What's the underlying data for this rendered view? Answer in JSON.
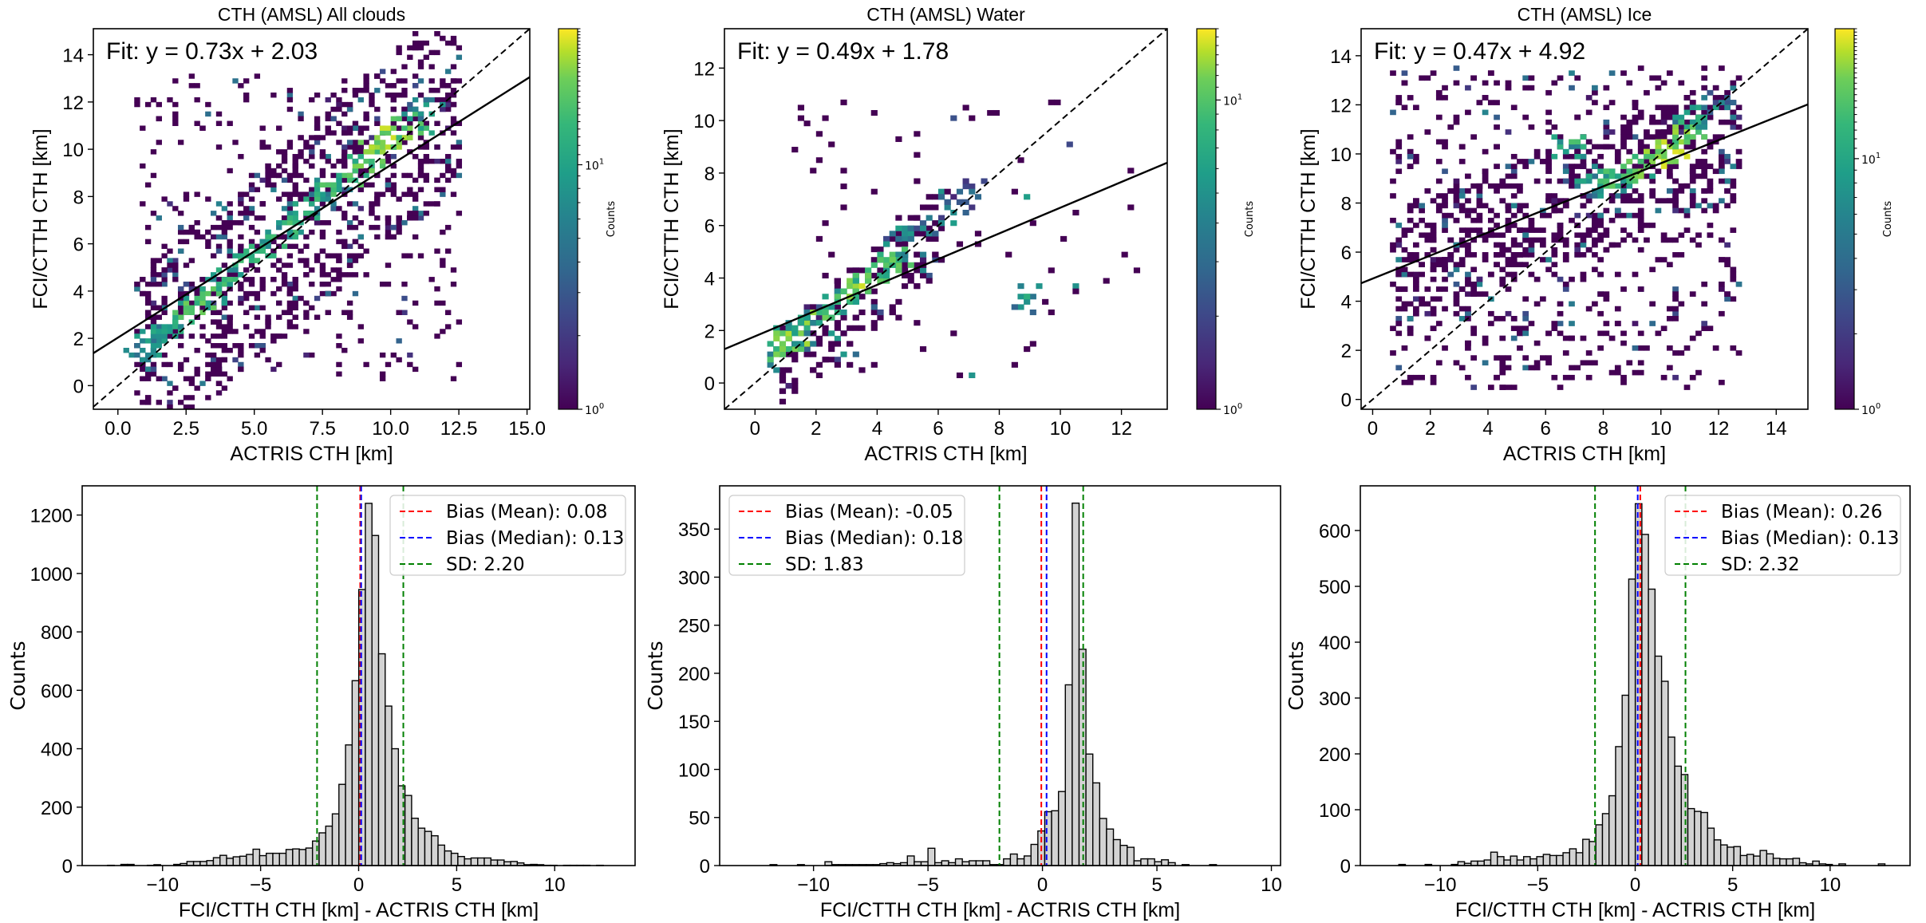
{
  "figure": {
    "description": "CTH comparison: FCI/CTTH vs ACTRIS — 2D histograms (top) and difference histograms (bottom)"
  },
  "chart_data": [
    {
      "id": "scatter-all",
      "type": "heatmap",
      "title": "CTH (AMSL) All clouds",
      "xlabel": "ACTRIS CTH [km]",
      "ylabel": "FCI/CTTH CTH [km]",
      "xlim": [
        -0.9,
        15.1
      ],
      "ylim": [
        -1.0,
        15.1
      ],
      "xticks": [
        0.0,
        2.5,
        5.0,
        7.5,
        10.0,
        12.5,
        15.0
      ],
      "xtick_labels": [
        "0.0",
        "2.5",
        "5.0",
        "7.5",
        "10.0",
        "12.5",
        "15.0"
      ],
      "yticks": [
        0,
        2,
        4,
        6,
        8,
        10,
        12,
        14
      ],
      "ytick_labels": [
        "0",
        "2",
        "4",
        "6",
        "8",
        "10",
        "12",
        "14"
      ],
      "fit": {
        "slope": 0.73,
        "intercept": 2.03,
        "label": "Fit: y = 0.73x + 2.03"
      },
      "one_to_one_line": true,
      "density_ridge": [
        [
          0.8,
          1.2,
          6
        ],
        [
          1.2,
          1.8,
          8
        ],
        [
          1.6,
          2.2,
          9
        ],
        [
          2.0,
          2.6,
          10
        ],
        [
          2.5,
          3.0,
          14
        ],
        [
          3.0,
          3.5,
          16
        ],
        [
          3.5,
          4.0,
          15
        ],
        [
          4.0,
          4.6,
          12
        ],
        [
          4.6,
          5.2,
          12
        ],
        [
          5.2,
          5.7,
          11
        ],
        [
          5.8,
          6.3,
          12
        ],
        [
          6.3,
          6.8,
          13
        ],
        [
          6.8,
          7.2,
          11
        ],
        [
          7.2,
          7.8,
          10
        ],
        [
          7.8,
          8.4,
          14
        ],
        [
          8.4,
          8.8,
          15
        ],
        [
          8.8,
          9.3,
          18
        ],
        [
          9.3,
          9.8,
          20
        ],
        [
          9.8,
          10.2,
          25
        ],
        [
          10.2,
          10.5,
          28
        ],
        [
          10.6,
          10.9,
          22
        ],
        [
          11.0,
          11.2,
          14
        ],
        [
          11.4,
          11.6,
          8
        ]
      ],
      "colorbar": {
        "label": "Counts",
        "scale": "log",
        "ticks": [
          "10^0",
          "10^1"
        ],
        "min": 1,
        "max": 36
      }
    },
    {
      "id": "scatter-water",
      "type": "heatmap",
      "title": "CTH (AMSL) Water",
      "xlabel": "ACTRIS CTH [km]",
      "ylabel": "FCI/CTTH CTH [km]",
      "xlim": [
        -1.0,
        13.5
      ],
      "ylim": [
        -1.0,
        13.5
      ],
      "xticks": [
        0,
        2,
        4,
        6,
        8,
        10,
        12
      ],
      "xtick_labels": [
        "0",
        "2",
        "4",
        "6",
        "8",
        "10",
        "12"
      ],
      "yticks": [
        0,
        2,
        4,
        6,
        8,
        10,
        12
      ],
      "ytick_labels": [
        "0",
        "2",
        "4",
        "6",
        "8",
        "10",
        "12"
      ],
      "fit": {
        "slope": 0.49,
        "intercept": 1.78,
        "label": "Fit: y = 0.49x + 1.78"
      },
      "one_to_one_line": true,
      "density_ridge": [
        [
          0.8,
          1.0,
          8
        ],
        [
          1.0,
          1.6,
          10
        ],
        [
          1.2,
          1.8,
          12
        ],
        [
          1.6,
          2.0,
          6
        ],
        [
          2.0,
          2.4,
          5
        ],
        [
          2.4,
          2.8,
          12
        ],
        [
          2.8,
          3.2,
          8
        ],
        [
          3.2,
          3.5,
          10
        ],
        [
          3.5,
          3.7,
          14
        ],
        [
          3.8,
          4.0,
          9
        ],
        [
          4.2,
          4.4,
          8
        ],
        [
          4.6,
          4.8,
          9
        ],
        [
          5.0,
          5.4,
          5
        ],
        [
          5.6,
          5.9,
          4
        ],
        [
          6.4,
          6.6,
          4
        ],
        [
          7.0,
          7.2,
          3
        ],
        [
          8.9,
          3.2,
          6
        ]
      ],
      "colorbar": {
        "label": "Counts",
        "scale": "log",
        "ticks": [
          "10^0",
          "10^1"
        ],
        "min": 1,
        "max": 17
      }
    },
    {
      "id": "scatter-ice",
      "type": "heatmap",
      "title": "CTH (AMSL) Ice",
      "xlabel": "ACTRIS CTH [km]",
      "ylabel": "FCI/CTTH CTH [km]",
      "xlim": [
        -0.4,
        15.1
      ],
      "ylim": [
        -0.4,
        15.1
      ],
      "xticks": [
        0,
        2,
        4,
        6,
        8,
        10,
        12,
        14
      ],
      "xtick_labels": [
        "0",
        "2",
        "4",
        "6",
        "8",
        "10",
        "12",
        "14"
      ],
      "yticks": [
        0,
        2,
        4,
        6,
        8,
        10,
        12,
        14
      ],
      "ytick_labels": [
        "0",
        "2",
        "4",
        "6",
        "8",
        "10",
        "12",
        "14"
      ],
      "fit": {
        "slope": 0.47,
        "intercept": 4.92,
        "label": "Fit: y = 0.47x + 4.92"
      },
      "one_to_one_line": true,
      "density_ridge": [
        [
          6.8,
          10.4,
          12
        ],
        [
          7.6,
          9.0,
          8
        ],
        [
          8.2,
          8.8,
          12
        ],
        [
          8.6,
          9.0,
          14
        ],
        [
          9.0,
          9.2,
          16
        ],
        [
          9.4,
          9.6,
          18
        ],
        [
          9.8,
          10.0,
          22
        ],
        [
          10.2,
          10.4,
          26
        ],
        [
          10.4,
          10.0,
          28
        ],
        [
          10.6,
          10.8,
          20
        ],
        [
          11.0,
          11.0,
          14
        ],
        [
          11.4,
          11.6,
          8
        ],
        [
          12.0,
          12.0,
          5
        ]
      ],
      "colorbar": {
        "label": "Counts",
        "scale": "log",
        "ticks": [
          "10^0",
          "10^1"
        ],
        "min": 1,
        "max": 33
      }
    },
    {
      "id": "hist-all",
      "type": "bar",
      "subtype": "histogram",
      "xlabel": "FCI/CTTH CTH [km] - ACTRIS CTH [km]",
      "ylabel": "Counts",
      "xlim": [
        -14.1,
        14.1
      ],
      "ylim": [
        0,
        1300
      ],
      "xticks": [
        -10,
        -5,
        0,
        5,
        10
      ],
      "xtick_labels": [
        "−10",
        "−5",
        "0",
        "5",
        "10"
      ],
      "yticks": [
        0,
        200,
        400,
        600,
        800,
        1000,
        1200
      ],
      "ytick_labels": [
        "0",
        "200",
        "400",
        "600",
        "800",
        "1000",
        "1200"
      ],
      "bin_start": -12.8,
      "bin_width": 0.337,
      "values": [
        1,
        0,
        4,
        4,
        0,
        0,
        1,
        3,
        0,
        0,
        4,
        7,
        14,
        14,
        14,
        17,
        27,
        35,
        25,
        30,
        32,
        38,
        56,
        34,
        42,
        42,
        42,
        55,
        57,
        55,
        60,
        84,
        112,
        135,
        177,
        278,
        413,
        633,
        945,
        1240,
        1130,
        725,
        546,
        400,
        273,
        240,
        162,
        128,
        117,
        102,
        70,
        50,
        42,
        31,
        23,
        26,
        26,
        26,
        19,
        19,
        13,
        14,
        9,
        3,
        4,
        3,
        1,
        1,
        0,
        1,
        1,
        1,
        1,
        0,
        1,
        0
      ],
      "vlines": [
        {
          "name": "Bias (Mean)",
          "x": 0.08,
          "color": "#ff0000",
          "label": "Bias (Mean): 0.08"
        },
        {
          "name": "Bias (Median)",
          "x": 0.13,
          "color": "#0000ff",
          "label": "Bias (Median): 0.13"
        },
        {
          "name": "SD",
          "x_pair": [
            -2.12,
            2.28
          ],
          "color": "#008000",
          "label": "SD: 2.20"
        }
      ],
      "legend": {
        "position": "top-right"
      }
    },
    {
      "id": "hist-water",
      "type": "bar",
      "subtype": "histogram",
      "xlabel": "FCI/CTTH CTH [km] - ACTRIS CTH [km]",
      "ylabel": "Counts",
      "xlim": [
        -14.1,
        10.4
      ],
      "ylim": [
        0,
        395
      ],
      "xticks": [
        -10,
        -5,
        0,
        5,
        10
      ],
      "xtick_labels": [
        "−10",
        "−5",
        "0",
        "5",
        "10"
      ],
      "yticks": [
        0,
        50,
        100,
        150,
        200,
        250,
        300,
        350
      ],
      "ytick_labels": [
        "0",
        "50",
        "100",
        "150",
        "200",
        "250",
        "300",
        "350"
      ],
      "bin_start": -12.8,
      "bin_width": 0.3,
      "values": [
        0,
        0,
        0,
        1,
        0,
        0,
        0,
        1,
        0,
        0,
        0,
        4,
        1,
        1,
        1,
        1,
        1,
        1,
        1,
        2,
        3,
        2,
        3,
        10,
        4,
        4,
        18,
        3,
        5,
        3,
        7,
        4,
        5,
        5,
        5,
        1,
        1,
        7,
        12,
        7,
        10,
        22,
        36,
        56,
        57,
        77,
        188,
        377,
        225,
        116,
        86,
        49,
        38,
        27,
        21,
        19,
        5,
        7,
        7,
        4,
        6,
        3,
        0,
        1,
        0,
        0,
        0,
        1,
        0,
        0,
        0,
        0,
        0,
        0,
        0,
        0,
        0,
        0,
        0,
        0,
        0,
        0,
        0,
        0,
        0,
        0,
        0,
        0,
        0,
        0,
        0,
        0,
        0,
        0,
        0,
        0,
        0,
        0,
        0,
        2,
        1
      ],
      "vlines": [
        {
          "name": "Bias (Mean)",
          "x": -0.05,
          "color": "#ff0000",
          "label": "Bias (Mean): -0.05"
        },
        {
          "name": "Bias (Median)",
          "x": 0.18,
          "color": "#0000ff",
          "label": "Bias (Median): 0.18"
        },
        {
          "name": "SD",
          "x_pair": [
            -1.88,
            1.78
          ],
          "color": "#008000",
          "label": "SD: 1.83"
        }
      ],
      "legend": {
        "position": "top-left"
      }
    },
    {
      "id": "hist-ice",
      "type": "bar",
      "subtype": "histogram",
      "xlabel": "FCI/CTTH CTH [km] - ACTRIS CTH [km]",
      "ylabel": "Counts",
      "xlim": [
        -14.1,
        14.1
      ],
      "ylim": [
        0,
        680
      ],
      "xticks": [
        -10,
        -5,
        0,
        5,
        10
      ],
      "xtick_labels": [
        "−10",
        "−5",
        "0",
        "5",
        "10"
      ],
      "yticks": [
        0,
        100,
        200,
        300,
        400,
        500,
        600
      ],
      "ytick_labels": [
        "0",
        "100",
        "200",
        "300",
        "400",
        "500",
        "600"
      ],
      "bin_start": -12.8,
      "bin_width": 0.337,
      "values": [
        0,
        0,
        2,
        0,
        0,
        0,
        2,
        0,
        0,
        0,
        2,
        7,
        4,
        8,
        8,
        10,
        24,
        16,
        10,
        17,
        10,
        16,
        12,
        16,
        20,
        18,
        18,
        23,
        30,
        23,
        47,
        43,
        73,
        93,
        125,
        213,
        305,
        513,
        648,
        593,
        495,
        375,
        330,
        230,
        178,
        163,
        102,
        97,
        95,
        67,
        46,
        37,
        33,
        34,
        18,
        20,
        17,
        27,
        21,
        13,
        12,
        12,
        13,
        5,
        3,
        8,
        3,
        2,
        0,
        3,
        0,
        0,
        0,
        0,
        0,
        3
      ],
      "vlines": [
        {
          "name": "Bias (Mean)",
          "x": 0.26,
          "color": "#ff0000",
          "label": "Bias (Mean): 0.26"
        },
        {
          "name": "Bias (Median)",
          "x": 0.13,
          "color": "#0000ff",
          "label": "Bias (Median): 0.13"
        },
        {
          "name": "SD",
          "x_pair": [
            -2.06,
            2.58
          ],
          "color": "#008000",
          "label": "SD: 2.32"
        }
      ],
      "legend": {
        "position": "top-right"
      }
    }
  ]
}
